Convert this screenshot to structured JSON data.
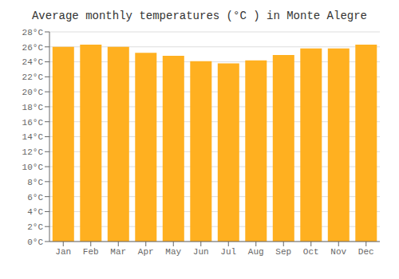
{
  "chart_data": {
    "type": "bar",
    "title": "Average monthly temperatures (°C ) in Monte Alegre",
    "categories": [
      "Jan",
      "Feb",
      "Mar",
      "Apr",
      "May",
      "Jun",
      "Jul",
      "Aug",
      "Sep",
      "Oct",
      "Nov",
      "Dec"
    ],
    "values": [
      26.0,
      26.3,
      26.0,
      25.2,
      24.8,
      24.1,
      23.8,
      24.2,
      24.9,
      25.8,
      25.8,
      26.3
    ],
    "color": "#FFB020",
    "ylim": [
      0,
      28
    ],
    "yticks": [
      {
        "value": 0,
        "label": "0°C"
      },
      {
        "value": 2,
        "label": "2°C"
      },
      {
        "value": 4,
        "label": "4°C"
      },
      {
        "value": 6,
        "label": "6°C"
      },
      {
        "value": 8,
        "label": "8°C"
      },
      {
        "value": 10,
        "label": "10°C"
      },
      {
        "value": 12,
        "label": "12°C"
      },
      {
        "value": 14,
        "label": "14°C"
      },
      {
        "value": 16,
        "label": "16°C"
      },
      {
        "value": 18,
        "label": "18°C"
      },
      {
        "value": 20,
        "label": "20°C"
      },
      {
        "value": 22,
        "label": "22°C"
      },
      {
        "value": 24,
        "label": "24°C"
      },
      {
        "value": 26,
        "label": "26°C"
      },
      {
        "value": 28,
        "label": "28°C"
      }
    ],
    "grid": true
  }
}
